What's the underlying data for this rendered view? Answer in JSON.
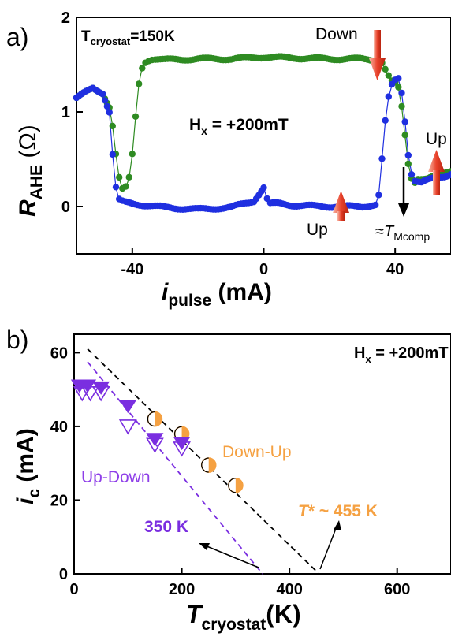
{
  "chart_data": [
    {
      "panel": "a)",
      "type": "scatter",
      "annotations": {
        "condition_main": "T",
        "condition_sub": "cryostat",
        "condition_value": "=150K",
        "field_main": "H",
        "field_sub": "x",
        "field_value": " = +200mT",
        "down": "Down",
        "up_left": "Up",
        "up_right": "Up",
        "tcomp_prefix": "≈",
        "tcomp_main": "T",
        "tcomp_sub": "Mcomp"
      },
      "xlabel_main": "i",
      "xlabel_sub": "pulse",
      "xlabel_rest": " (mA)",
      "ylabel_main": "R",
      "ylabel_sub": "AHE",
      "ylabel_rest": " (Ω)",
      "xlim": [
        -57,
        57
      ],
      "ylim": [
        -0.5,
        2
      ],
      "xticks": [
        -40,
        0,
        40
      ],
      "yticks": [
        0,
        1,
        2
      ],
      "colors": {
        "green": "#2e8b22",
        "blue": "#1f2fe0",
        "arrow": "#e8412a"
      },
      "series": [
        {
          "color": "green",
          "x": [
            -57,
            -52,
            -49,
            -47,
            -46,
            -45,
            -44,
            -43,
            -42,
            -41,
            -40,
            -39,
            -38,
            -37,
            -36,
            -35,
            -34,
            -33,
            -30,
            -20,
            -10,
            0,
            10,
            20,
            30,
            34,
            36,
            37,
            38,
            39,
            40,
            41,
            42,
            43,
            44,
            45,
            46,
            47,
            48,
            50,
            52,
            55,
            57
          ],
          "y": [
            1.15,
            1.25,
            1.2,
            1.05,
            0.85,
            0.55,
            0.3,
            0.18,
            0.2,
            0.3,
            0.55,
            0.95,
            1.3,
            1.47,
            1.53,
            1.55,
            1.56,
            1.56,
            1.55,
            1.56,
            1.56,
            1.58,
            1.57,
            1.56,
            1.56,
            1.55,
            1.52,
            1.45,
            1.38,
            1.32,
            1.3,
            1.25,
            1.05,
            0.75,
            0.45,
            0.3,
            0.26,
            0.3,
            0.3,
            0.3,
            0.32,
            0.35,
            0.38
          ]
        },
        {
          "color": "blue",
          "x": [
            -57,
            -52,
            -49,
            -47,
            -46,
            -45,
            -44,
            -43,
            -42,
            -40,
            -30,
            -20,
            -10,
            -3,
            0,
            1,
            2,
            5,
            10,
            20,
            30,
            34,
            35,
            36,
            37,
            38,
            39,
            40,
            41,
            42,
            43,
            44,
            45,
            46,
            48,
            50,
            55,
            57
          ],
          "y": [
            1.15,
            1.25,
            1.2,
            1.0,
            0.55,
            0.2,
            0.07,
            0.05,
            0.04,
            0.03,
            -0.01,
            -0.03,
            -0.01,
            0.06,
            0.2,
            0.08,
            0.03,
            0.03,
            0.01,
            0.0,
            0.0,
            0.02,
            0.12,
            0.5,
            0.9,
            1.15,
            1.28,
            1.33,
            1.35,
            1.2,
            0.9,
            0.55,
            0.35,
            0.28,
            0.26,
            0.28,
            0.32,
            0.35
          ]
        }
      ]
    },
    {
      "panel": "b)",
      "type": "scatter",
      "annotations": {
        "field_main": "H",
        "field_sub": "x",
        "field_value": " = +200mT",
        "down_up": "Down-Up",
        "up_down": "Up-Down",
        "t350": "350 K",
        "tstar_main": "T",
        "tstar_rest": "* ~ 455 K"
      },
      "xlabel_main": "T",
      "xlabel_sub": "cryostat",
      "xlabel_rest": "(K)",
      "ylabel_main": "i",
      "ylabel_sub": "c",
      "ylabel_rest": " (mA)",
      "xlim": [
        0,
        700
      ],
      "ylim": [
        0,
        65
      ],
      "xticks": [
        0,
        200,
        400,
        600
      ],
      "yticks": [
        0,
        20,
        40,
        60
      ],
      "colors": {
        "orange": "#f5a142",
        "purple": "#7a2ee0",
        "dashed_black": "#000000"
      },
      "series": [
        {
          "legend_label": "Down-Up",
          "color": "orange",
          "marker": "half-filled-circle",
          "x": [
            150,
            200,
            250,
            300
          ],
          "y": [
            42,
            38,
            29.5,
            24
          ]
        },
        {
          "legend_label": "Up-Down",
          "color": "purple",
          "marker": "triangle-down-filled",
          "x": [
            10,
            25,
            50,
            100,
            150,
            200
          ],
          "y": [
            51,
            51,
            50.5,
            45.5,
            36.5,
            35.5
          ]
        },
        {
          "color": "purple",
          "marker": "triangle-down-open",
          "x": [
            15,
            30,
            50,
            100,
            150,
            200
          ],
          "y": [
            49,
            49,
            49,
            40,
            35,
            34
          ]
        }
      ],
      "fit_lines": [
        {
          "color": "dashed_black",
          "x": [
            25,
            455
          ],
          "y": [
            61,
            0
          ]
        },
        {
          "color": "purple",
          "x": [
            25,
            350
          ],
          "y": [
            57.5,
            0
          ]
        }
      ]
    }
  ]
}
